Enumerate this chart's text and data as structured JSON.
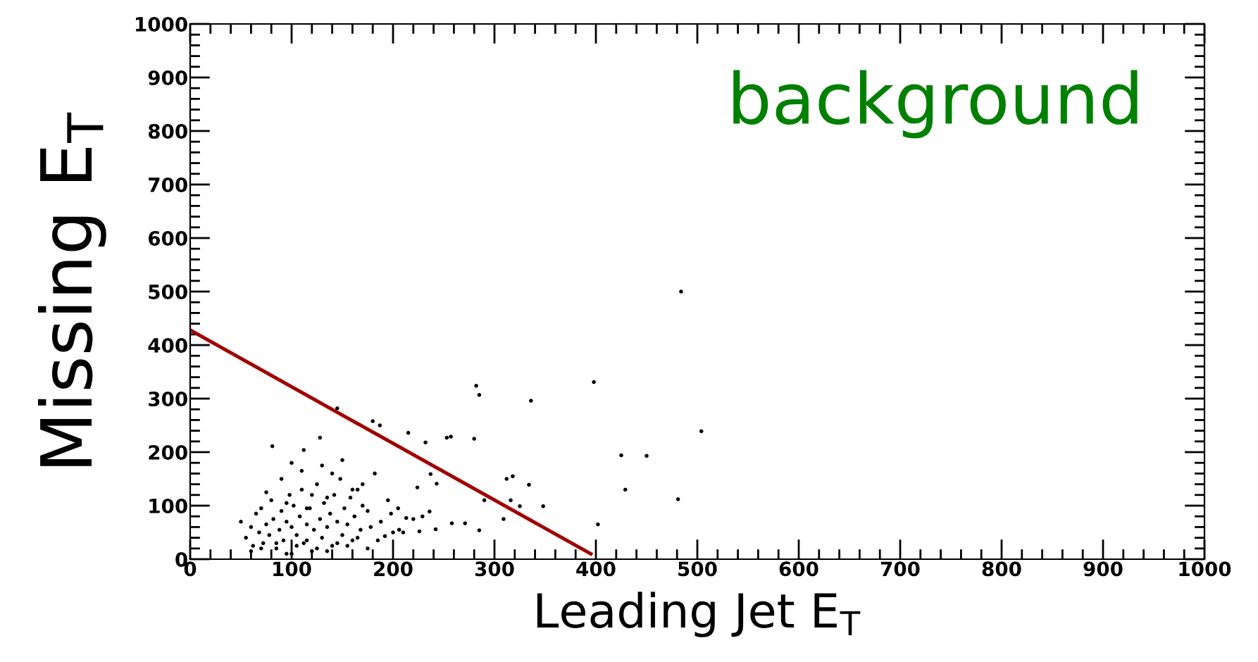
{
  "chart_data": {
    "type": "scatter",
    "xlabel": "Leading Jet E$_{T}$",
    "ylabel": "Missing E$_{T}$",
    "annotations": [
      "background"
    ],
    "xlim": [
      0,
      1000
    ],
    "ylim": [
      0,
      1000
    ],
    "xticks": [
      0,
      100,
      200,
      300,
      400,
      500,
      600,
      700,
      800,
      900,
      1000
    ],
    "yticks": [
      0,
      100,
      200,
      300,
      400,
      500,
      600,
      700,
      800,
      900,
      1000
    ],
    "grid": false,
    "legend": false,
    "marker": "circle",
    "series": [
      {
        "color": "#000000",
        "x": [
          398,
          282,
          285,
          336,
          504,
          484,
          425,
          450,
          429,
          481,
          402,
          280,
          257,
          253,
          232,
          215,
          180,
          187,
          145,
          128,
          81,
          112,
          312,
          318,
          334,
          348,
          309,
          285,
          271,
          258,
          242,
          316,
          325,
          290,
          237,
          243,
          224,
          236,
          229,
          220,
          213,
          206,
          200,
          192,
          185,
          226,
          50,
          55,
          60,
          62,
          65,
          68,
          70,
          72,
          75,
          78,
          80,
          82,
          85,
          88,
          90,
          92,
          95,
          98,
          100,
          100,
          102,
          105,
          108,
          110,
          112,
          115,
          118,
          120,
          122,
          125,
          128,
          130,
          132,
          135,
          138,
          140,
          142,
          145,
          148,
          150,
          152,
          155,
          158,
          160,
          162,
          165,
          168,
          170,
          175,
          178,
          182,
          188,
          195,
          198,
          205,
          210,
          60,
          70,
          85,
          95,
          105,
          115,
          125,
          135,
          145,
          155,
          165,
          175,
          90,
          110,
          130,
          150,
          170,
          100,
          120,
          140,
          160,
          75,
          95,
          115,
          135
        ],
        "values": [
          331,
          324,
          307,
          296,
          239,
          500,
          194,
          193,
          130,
          112,
          65,
          225,
          229,
          227,
          218,
          236,
          258,
          250,
          282,
          227,
          211,
          204,
          150,
          155,
          139,
          99,
          75,
          54,
          67,
          67,
          56,
          110,
          99,
          110,
          159,
          141,
          134,
          89,
          80,
          75,
          77,
          55,
          50,
          43,
          35,
          52,
          70,
          40,
          60,
          25,
          85,
          50,
          95,
          30,
          65,
          45,
          110,
          75,
          20,
          55,
          90,
          35,
          70,
          120,
          10,
          60,
          100,
          45,
          80,
          130,
          30,
          65,
          95,
          15,
          55,
          140,
          75,
          40,
          105,
          60,
          85,
          25,
          120,
          70,
          150,
          45,
          95,
          65,
          115,
          35,
          80,
          130,
          55,
          100,
          90,
          60,
          160,
          70,
          110,
          85,
          95,
          50,
          15,
          20,
          30,
          10,
          25,
          35,
          20,
          15,
          30,
          25,
          40,
          20,
          150,
          165,
          175,
          185,
          140,
          180,
          120,
          160,
          130,
          125,
          105,
          95,
          115
        ]
      },
      {
        "type": "line",
        "color": "#a00000",
        "marker": "none",
        "x": [
          0,
          395
        ],
        "values": [
          428,
          10
        ]
      }
    ]
  }
}
